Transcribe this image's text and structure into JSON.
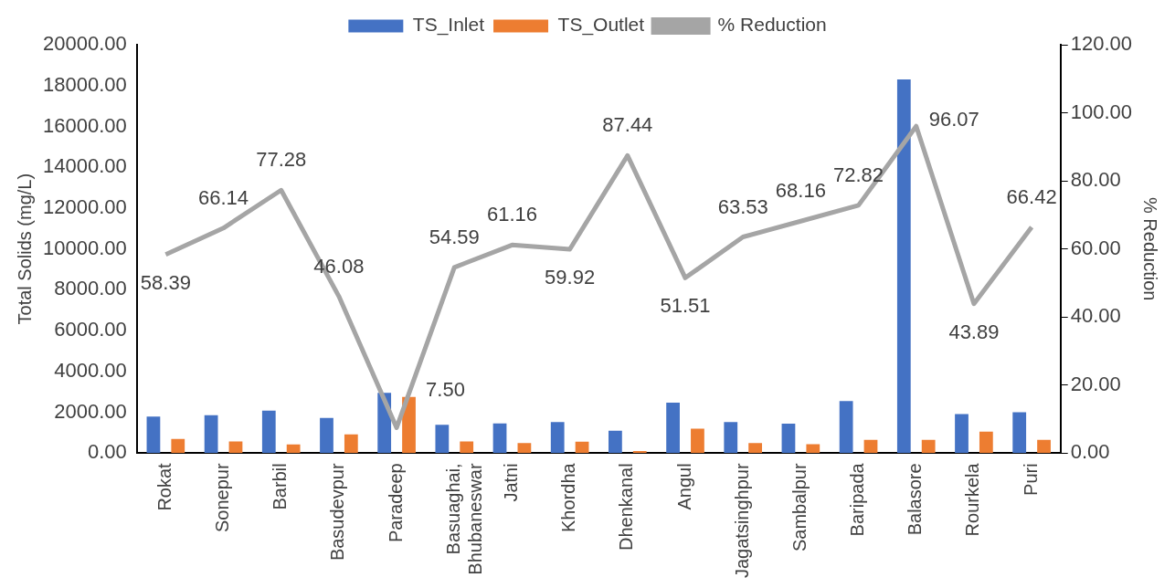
{
  "chart_data": {
    "type": "bar",
    "xlabel": null,
    "ylabel": "Total Solids (mg/L)",
    "y2label": "% Reduction",
    "categories": [
      "Rokat",
      "Sonepur",
      "Barbil",
      "Basudevpur",
      "Paradeep",
      "Basuaghai, Bhubaneswar",
      "Jatni",
      "Khordha",
      "Dhenkanal",
      "Angul",
      "Jagatsinghpur",
      "Sambalpur",
      "Baripada",
      "Balasore",
      "Rourkela",
      "Puri"
    ],
    "series": [
      {
        "name": "TS_Inlet",
        "color": "#4472c4",
        "values": [
          1790,
          1860,
          2080,
          1730,
          2950,
          1390,
          1460,
          1520,
          1100,
          2470,
          1520,
          1450,
          2550,
          18300,
          1920,
          2000
        ]
      },
      {
        "name": "TS_Outlet",
        "color": "#ed7d31",
        "values": [
          700,
          570,
          430,
          920,
          2750,
          570,
          500,
          560,
          100,
          1200,
          500,
          440,
          650,
          650,
          1050,
          650
        ]
      },
      {
        "name": "% Reduction",
        "type": "line",
        "axis": "y2",
        "color": "#a5a5a5",
        "marker": "none",
        "values": [
          58.39,
          66.14,
          77.28,
          46.08,
          7.5,
          54.59,
          61.16,
          59.92,
          87.44,
          51.51,
          63.53,
          68.16,
          72.82,
          96.07,
          43.89,
          66.42
        ],
        "value_labels": [
          "58.39",
          "66.14",
          "77.28",
          "46.08",
          "7.50",
          "54.59",
          "61.16",
          "59.92",
          "87.44",
          "51.51",
          "63.53",
          "68.16",
          "72.82",
          "96.07",
          "43.89",
          "66.42"
        ]
      }
    ],
    "ylim": [
      0,
      20000
    ],
    "yticks": [
      {
        "value": 0,
        "label": "0.00"
      },
      {
        "value": 2000,
        "label": "2000.00"
      },
      {
        "value": 4000,
        "label": "4000.00"
      },
      {
        "value": 6000,
        "label": "6000.00"
      },
      {
        "value": 8000,
        "label": "8000.00"
      },
      {
        "value": 10000,
        "label": "10000.00"
      },
      {
        "value": 12000,
        "label": "12000.00"
      },
      {
        "value": 14000,
        "label": "14000.00"
      },
      {
        "value": 16000,
        "label": "16000.00"
      },
      {
        "value": 18000,
        "label": "18000.00"
      },
      {
        "value": 20000,
        "label": "20000.00"
      }
    ],
    "y2lim": [
      0,
      120
    ],
    "y2ticks": [
      {
        "value": 0,
        "label": "0.00"
      },
      {
        "value": 20,
        "label": "20.00"
      },
      {
        "value": 40,
        "label": "40.00"
      },
      {
        "value": 60,
        "label": "60.00"
      },
      {
        "value": 80,
        "label": "80.00"
      },
      {
        "value": 100,
        "label": "100.00"
      },
      {
        "value": 120,
        "label": "120.00"
      }
    ],
    "grid": false,
    "legend": "top"
  }
}
